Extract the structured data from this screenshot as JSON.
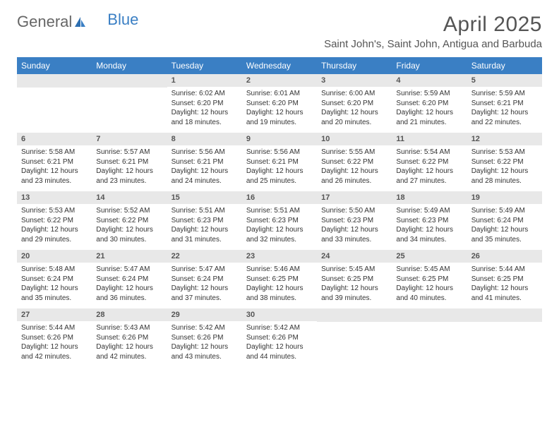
{
  "logo": {
    "text1": "General",
    "text2": "Blue"
  },
  "title": "April 2025",
  "location": "Saint John's, Saint John, Antigua and Barbuda",
  "colors": {
    "header_bg": "#3a7fc4",
    "header_text": "#ffffff",
    "daynum_bg": "#e8e8e8",
    "body_bg": "#ffffff",
    "text": "#333333"
  },
  "day_names": [
    "Sunday",
    "Monday",
    "Tuesday",
    "Wednesday",
    "Thursday",
    "Friday",
    "Saturday"
  ],
  "weeks": [
    [
      {
        "blank": true
      },
      {
        "blank": true
      },
      {
        "day": "1",
        "sunrise": "Sunrise: 6:02 AM",
        "sunset": "Sunset: 6:20 PM",
        "daylight": "Daylight: 12 hours and 18 minutes."
      },
      {
        "day": "2",
        "sunrise": "Sunrise: 6:01 AM",
        "sunset": "Sunset: 6:20 PM",
        "daylight": "Daylight: 12 hours and 19 minutes."
      },
      {
        "day": "3",
        "sunrise": "Sunrise: 6:00 AM",
        "sunset": "Sunset: 6:20 PM",
        "daylight": "Daylight: 12 hours and 20 minutes."
      },
      {
        "day": "4",
        "sunrise": "Sunrise: 5:59 AM",
        "sunset": "Sunset: 6:20 PM",
        "daylight": "Daylight: 12 hours and 21 minutes."
      },
      {
        "day": "5",
        "sunrise": "Sunrise: 5:59 AM",
        "sunset": "Sunset: 6:21 PM",
        "daylight": "Daylight: 12 hours and 22 minutes."
      }
    ],
    [
      {
        "day": "6",
        "sunrise": "Sunrise: 5:58 AM",
        "sunset": "Sunset: 6:21 PM",
        "daylight": "Daylight: 12 hours and 23 minutes."
      },
      {
        "day": "7",
        "sunrise": "Sunrise: 5:57 AM",
        "sunset": "Sunset: 6:21 PM",
        "daylight": "Daylight: 12 hours and 23 minutes."
      },
      {
        "day": "8",
        "sunrise": "Sunrise: 5:56 AM",
        "sunset": "Sunset: 6:21 PM",
        "daylight": "Daylight: 12 hours and 24 minutes."
      },
      {
        "day": "9",
        "sunrise": "Sunrise: 5:56 AM",
        "sunset": "Sunset: 6:21 PM",
        "daylight": "Daylight: 12 hours and 25 minutes."
      },
      {
        "day": "10",
        "sunrise": "Sunrise: 5:55 AM",
        "sunset": "Sunset: 6:22 PM",
        "daylight": "Daylight: 12 hours and 26 minutes."
      },
      {
        "day": "11",
        "sunrise": "Sunrise: 5:54 AM",
        "sunset": "Sunset: 6:22 PM",
        "daylight": "Daylight: 12 hours and 27 minutes."
      },
      {
        "day": "12",
        "sunrise": "Sunrise: 5:53 AM",
        "sunset": "Sunset: 6:22 PM",
        "daylight": "Daylight: 12 hours and 28 minutes."
      }
    ],
    [
      {
        "day": "13",
        "sunrise": "Sunrise: 5:53 AM",
        "sunset": "Sunset: 6:22 PM",
        "daylight": "Daylight: 12 hours and 29 minutes."
      },
      {
        "day": "14",
        "sunrise": "Sunrise: 5:52 AM",
        "sunset": "Sunset: 6:22 PM",
        "daylight": "Daylight: 12 hours and 30 minutes."
      },
      {
        "day": "15",
        "sunrise": "Sunrise: 5:51 AM",
        "sunset": "Sunset: 6:23 PM",
        "daylight": "Daylight: 12 hours and 31 minutes."
      },
      {
        "day": "16",
        "sunrise": "Sunrise: 5:51 AM",
        "sunset": "Sunset: 6:23 PM",
        "daylight": "Daylight: 12 hours and 32 minutes."
      },
      {
        "day": "17",
        "sunrise": "Sunrise: 5:50 AM",
        "sunset": "Sunset: 6:23 PM",
        "daylight": "Daylight: 12 hours and 33 minutes."
      },
      {
        "day": "18",
        "sunrise": "Sunrise: 5:49 AM",
        "sunset": "Sunset: 6:23 PM",
        "daylight": "Daylight: 12 hours and 34 minutes."
      },
      {
        "day": "19",
        "sunrise": "Sunrise: 5:49 AM",
        "sunset": "Sunset: 6:24 PM",
        "daylight": "Daylight: 12 hours and 35 minutes."
      }
    ],
    [
      {
        "day": "20",
        "sunrise": "Sunrise: 5:48 AM",
        "sunset": "Sunset: 6:24 PM",
        "daylight": "Daylight: 12 hours and 35 minutes."
      },
      {
        "day": "21",
        "sunrise": "Sunrise: 5:47 AM",
        "sunset": "Sunset: 6:24 PM",
        "daylight": "Daylight: 12 hours and 36 minutes."
      },
      {
        "day": "22",
        "sunrise": "Sunrise: 5:47 AM",
        "sunset": "Sunset: 6:24 PM",
        "daylight": "Daylight: 12 hours and 37 minutes."
      },
      {
        "day": "23",
        "sunrise": "Sunrise: 5:46 AM",
        "sunset": "Sunset: 6:25 PM",
        "daylight": "Daylight: 12 hours and 38 minutes."
      },
      {
        "day": "24",
        "sunrise": "Sunrise: 5:45 AM",
        "sunset": "Sunset: 6:25 PM",
        "daylight": "Daylight: 12 hours and 39 minutes."
      },
      {
        "day": "25",
        "sunrise": "Sunrise: 5:45 AM",
        "sunset": "Sunset: 6:25 PM",
        "daylight": "Daylight: 12 hours and 40 minutes."
      },
      {
        "day": "26",
        "sunrise": "Sunrise: 5:44 AM",
        "sunset": "Sunset: 6:25 PM",
        "daylight": "Daylight: 12 hours and 41 minutes."
      }
    ],
    [
      {
        "day": "27",
        "sunrise": "Sunrise: 5:44 AM",
        "sunset": "Sunset: 6:26 PM",
        "daylight": "Daylight: 12 hours and 42 minutes."
      },
      {
        "day": "28",
        "sunrise": "Sunrise: 5:43 AM",
        "sunset": "Sunset: 6:26 PM",
        "daylight": "Daylight: 12 hours and 42 minutes."
      },
      {
        "day": "29",
        "sunrise": "Sunrise: 5:42 AM",
        "sunset": "Sunset: 6:26 PM",
        "daylight": "Daylight: 12 hours and 43 minutes."
      },
      {
        "day": "30",
        "sunrise": "Sunrise: 5:42 AM",
        "sunset": "Sunset: 6:26 PM",
        "daylight": "Daylight: 12 hours and 44 minutes."
      },
      {
        "blank": true
      },
      {
        "blank": true
      },
      {
        "blank": true
      }
    ]
  ]
}
